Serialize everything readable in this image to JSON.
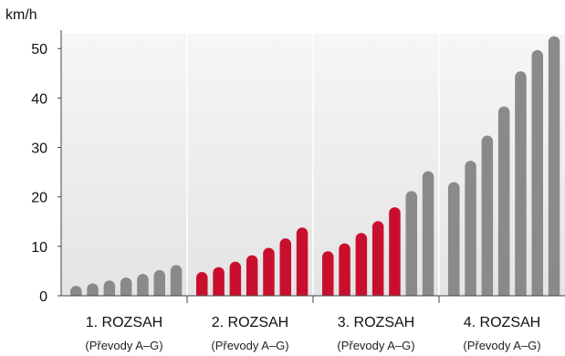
{
  "chart_data": {
    "type": "bar",
    "ylabel": "km/h",
    "ylim": [
      0,
      53
    ],
    "yticks": [
      0,
      10,
      20,
      30,
      40,
      50
    ],
    "grid": "vertical dividers between groups",
    "colors": {
      "highlight": "#c8102e",
      "normal": "#8a8a8a",
      "background": "#ececec"
    },
    "groups": [
      {
        "label": "1. ROZSAH",
        "sublabel": "(Převody A–G)",
        "values": [
          2.0,
          2.5,
          3.1,
          3.7,
          4.4,
          5.2,
          6.2
        ],
        "highlighted": [
          false,
          false,
          false,
          false,
          false,
          false,
          false
        ]
      },
      {
        "label": "2. ROZSAH",
        "sublabel": "(Převody A–G)",
        "values": [
          4.8,
          5.8,
          6.9,
          8.2,
          9.7,
          11.6,
          13.8
        ],
        "highlighted": [
          true,
          true,
          true,
          true,
          true,
          true,
          true
        ]
      },
      {
        "label": "3. ROZSAH",
        "sublabel": "(Převody A–G)",
        "values": [
          9.0,
          10.6,
          12.7,
          15.1,
          17.9,
          21.2,
          25.2
        ],
        "highlighted": [
          true,
          true,
          true,
          true,
          true,
          false,
          false
        ]
      },
      {
        "label": "4. ROZSAH",
        "sublabel": "(Převody A–G)",
        "values": [
          23.0,
          27.3,
          32.4,
          38.3,
          45.4,
          49.7,
          52.5
        ],
        "highlighted": [
          false,
          false,
          false,
          false,
          false,
          false,
          false
        ]
      }
    ]
  }
}
